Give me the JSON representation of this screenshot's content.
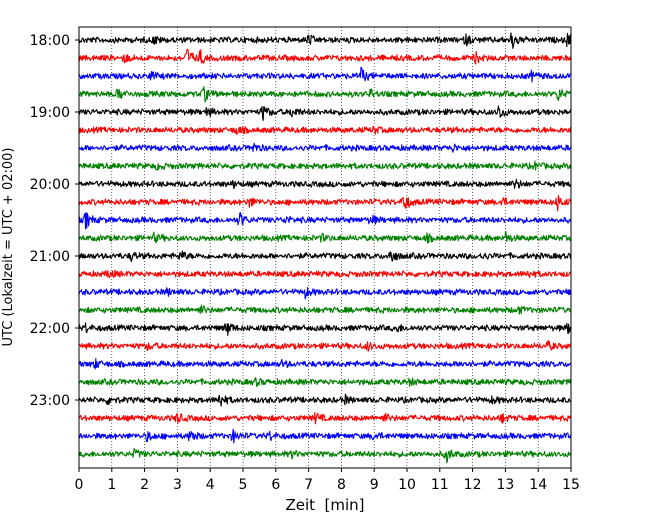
{
  "chart_data": {
    "type": "line",
    "title": "",
    "xlabel": "Zeit  [min]",
    "ylabel": "UTC (Lokalzeit = UTC + 02:00)",
    "xlim": [
      0,
      15
    ],
    "x_ticks": [
      0,
      1,
      2,
      3,
      4,
      5,
      6,
      7,
      8,
      9,
      10,
      11,
      12,
      13,
      14,
      15
    ],
    "x_tick_labels": [
      "0",
      "1",
      "2",
      "3",
      "4",
      "5",
      "6",
      "7",
      "8",
      "9",
      "10",
      "11",
      "12",
      "13",
      "14",
      "15"
    ],
    "vertical_gridlines": "dotted, every minute",
    "trace_interval_minutes": 15,
    "y_tick_labels": [
      "18:00",
      "19:00",
      "20:00",
      "21:00",
      "22:00",
      "23:00"
    ],
    "y_tick_trace_index": [
      0,
      4,
      8,
      12,
      16,
      20
    ],
    "trace_start_times": [
      "18:00",
      "18:15",
      "18:30",
      "18:45",
      "19:00",
      "19:15",
      "19:30",
      "19:45",
      "20:00",
      "20:15",
      "20:30",
      "20:45",
      "21:00",
      "21:15",
      "21:30",
      "21:45",
      "22:00",
      "22:15",
      "22:30",
      "22:45",
      "23:00",
      "23:15",
      "23:30",
      "23:45"
    ],
    "trace_colors": [
      "#000000",
      "#ff0000",
      "#0000ff",
      "#008000"
    ],
    "traces": [
      {
        "start": "18:00",
        "color": "#000000",
        "events": [
          {
            "t": 13.2,
            "amp": 1.0
          },
          {
            "t": 14.9,
            "amp": 0.8
          },
          {
            "t": 7.0,
            "amp": 0.5
          },
          {
            "t": 2.3,
            "amp": 0.4
          },
          {
            "t": 11.8,
            "amp": 0.5
          }
        ]
      },
      {
        "start": "18:15",
        "color": "#ff0000",
        "events": [
          {
            "t": 3.3,
            "amp": 1.0
          },
          {
            "t": 3.7,
            "amp": 0.7
          },
          {
            "t": 12.1,
            "amp": 0.5
          },
          {
            "t": 1.4,
            "amp": 0.4
          }
        ]
      },
      {
        "start": "18:30",
        "color": "#0000ff",
        "events": [
          {
            "t": 8.6,
            "amp": 0.8
          },
          {
            "t": 2.2,
            "amp": 0.4
          },
          {
            "t": 13.8,
            "amp": 0.4
          }
        ]
      },
      {
        "start": "18:45",
        "color": "#008000",
        "events": [
          {
            "t": 3.8,
            "amp": 0.8
          },
          {
            "t": 1.2,
            "amp": 0.6
          },
          {
            "t": 14.6,
            "amp": 0.7
          },
          {
            "t": 8.9,
            "amp": 0.4
          }
        ]
      },
      {
        "start": "19:00",
        "color": "#000000",
        "events": [
          {
            "t": 5.6,
            "amp": 0.8
          },
          {
            "t": 12.8,
            "amp": 0.8
          },
          {
            "t": 6.5,
            "amp": 0.5
          },
          {
            "t": 3.9,
            "amp": 0.4
          }
        ]
      },
      {
        "start": "19:15",
        "color": "#ff0000",
        "events": [
          {
            "t": 4.8,
            "amp": 0.4
          },
          {
            "t": 9.0,
            "amp": 0.3
          }
        ]
      },
      {
        "start": "19:30",
        "color": "#0000ff",
        "events": [
          {
            "t": 5.3,
            "amp": 0.5
          },
          {
            "t": 11.4,
            "amp": 0.3
          }
        ]
      },
      {
        "start": "19:45",
        "color": "#008000",
        "events": [
          {
            "t": 2.4,
            "amp": 0.3
          },
          {
            "t": 13.9,
            "amp": 0.3
          }
        ]
      },
      {
        "start": "20:00",
        "color": "#000000",
        "events": [
          {
            "t": 13.3,
            "amp": 0.5
          },
          {
            "t": 4.7,
            "amp": 0.3
          }
        ]
      },
      {
        "start": "20:15",
        "color": "#ff0000",
        "events": [
          {
            "t": 9.9,
            "amp": 1.0
          },
          {
            "t": 14.6,
            "amp": 0.8
          },
          {
            "t": 5.2,
            "amp": 0.5
          },
          {
            "t": 12.9,
            "amp": 0.4
          }
        ]
      },
      {
        "start": "20:30",
        "color": "#0000ff",
        "events": [
          {
            "t": 0.2,
            "amp": 0.9
          },
          {
            "t": 4.9,
            "amp": 0.8
          },
          {
            "t": 8.9,
            "amp": 0.5
          },
          {
            "t": 6.3,
            "amp": 0.3
          }
        ]
      },
      {
        "start": "20:45",
        "color": "#008000",
        "events": [
          {
            "t": 2.3,
            "amp": 0.4
          },
          {
            "t": 13.0,
            "amp": 0.6
          },
          {
            "t": 7.4,
            "amp": 0.3
          },
          {
            "t": 10.6,
            "amp": 0.3
          }
        ]
      },
      {
        "start": "21:00",
        "color": "#000000",
        "events": [
          {
            "t": 3.1,
            "amp": 0.5
          },
          {
            "t": 9.5,
            "amp": 0.8
          },
          {
            "t": 1.6,
            "amp": 0.4
          },
          {
            "t": 12.3,
            "amp": 0.3
          }
        ]
      },
      {
        "start": "21:15",
        "color": "#ff0000",
        "events": [
          {
            "t": 0.9,
            "amp": 0.4
          },
          {
            "t": 13.7,
            "amp": 0.3
          }
        ]
      },
      {
        "start": "21:30",
        "color": "#0000ff",
        "events": [
          {
            "t": 6.9,
            "amp": 0.5
          },
          {
            "t": 2.7,
            "amp": 0.3
          }
        ]
      },
      {
        "start": "21:45",
        "color": "#008000",
        "events": [
          {
            "t": 3.7,
            "amp": 0.4
          },
          {
            "t": 13.4,
            "amp": 0.3
          }
        ]
      },
      {
        "start": "22:00",
        "color": "#000000",
        "events": [
          {
            "t": 4.5,
            "amp": 0.8
          },
          {
            "t": 14.9,
            "amp": 0.5
          },
          {
            "t": 0.2,
            "amp": 0.4
          },
          {
            "t": 9.7,
            "amp": 0.3
          }
        ]
      },
      {
        "start": "22:15",
        "color": "#ff0000",
        "events": [
          {
            "t": 8.8,
            "amp": 0.4
          },
          {
            "t": 14.3,
            "amp": 0.4
          },
          {
            "t": 2.1,
            "amp": 0.3
          }
        ]
      },
      {
        "start": "22:30",
        "color": "#0000ff",
        "events": [
          {
            "t": 0.5,
            "amp": 0.4
          },
          {
            "t": 6.2,
            "amp": 0.3
          },
          {
            "t": 11.7,
            "amp": 0.3
          }
        ]
      },
      {
        "start": "22:45",
        "color": "#008000",
        "events": [
          {
            "t": 5.4,
            "amp": 0.3
          },
          {
            "t": 10.1,
            "amp": 0.3
          }
        ]
      },
      {
        "start": "23:00",
        "color": "#000000",
        "events": [
          {
            "t": 4.3,
            "amp": 0.8
          },
          {
            "t": 8.1,
            "amp": 0.4
          },
          {
            "t": 0.9,
            "amp": 0.4
          },
          {
            "t": 12.6,
            "amp": 0.3
          }
        ]
      },
      {
        "start": "23:15",
        "color": "#ff0000",
        "events": [
          {
            "t": 3.0,
            "amp": 0.5
          },
          {
            "t": 7.2,
            "amp": 0.5
          },
          {
            "t": 9.3,
            "amp": 0.4
          },
          {
            "t": 12.9,
            "amp": 0.4
          }
        ]
      },
      {
        "start": "23:30",
        "color": "#0000ff",
        "events": [
          {
            "t": 3.4,
            "amp": 0.7
          },
          {
            "t": 4.7,
            "amp": 0.6
          },
          {
            "t": 2.1,
            "amp": 0.5
          },
          {
            "t": 5.8,
            "amp": 0.4
          },
          {
            "t": 9.0,
            "amp": 0.4
          }
        ]
      },
      {
        "start": "23:45",
        "color": "#008000",
        "events": [
          {
            "t": 11.2,
            "amp": 0.8
          },
          {
            "t": 1.7,
            "amp": 0.4
          },
          {
            "t": 6.5,
            "amp": 0.3
          }
        ]
      }
    ]
  }
}
